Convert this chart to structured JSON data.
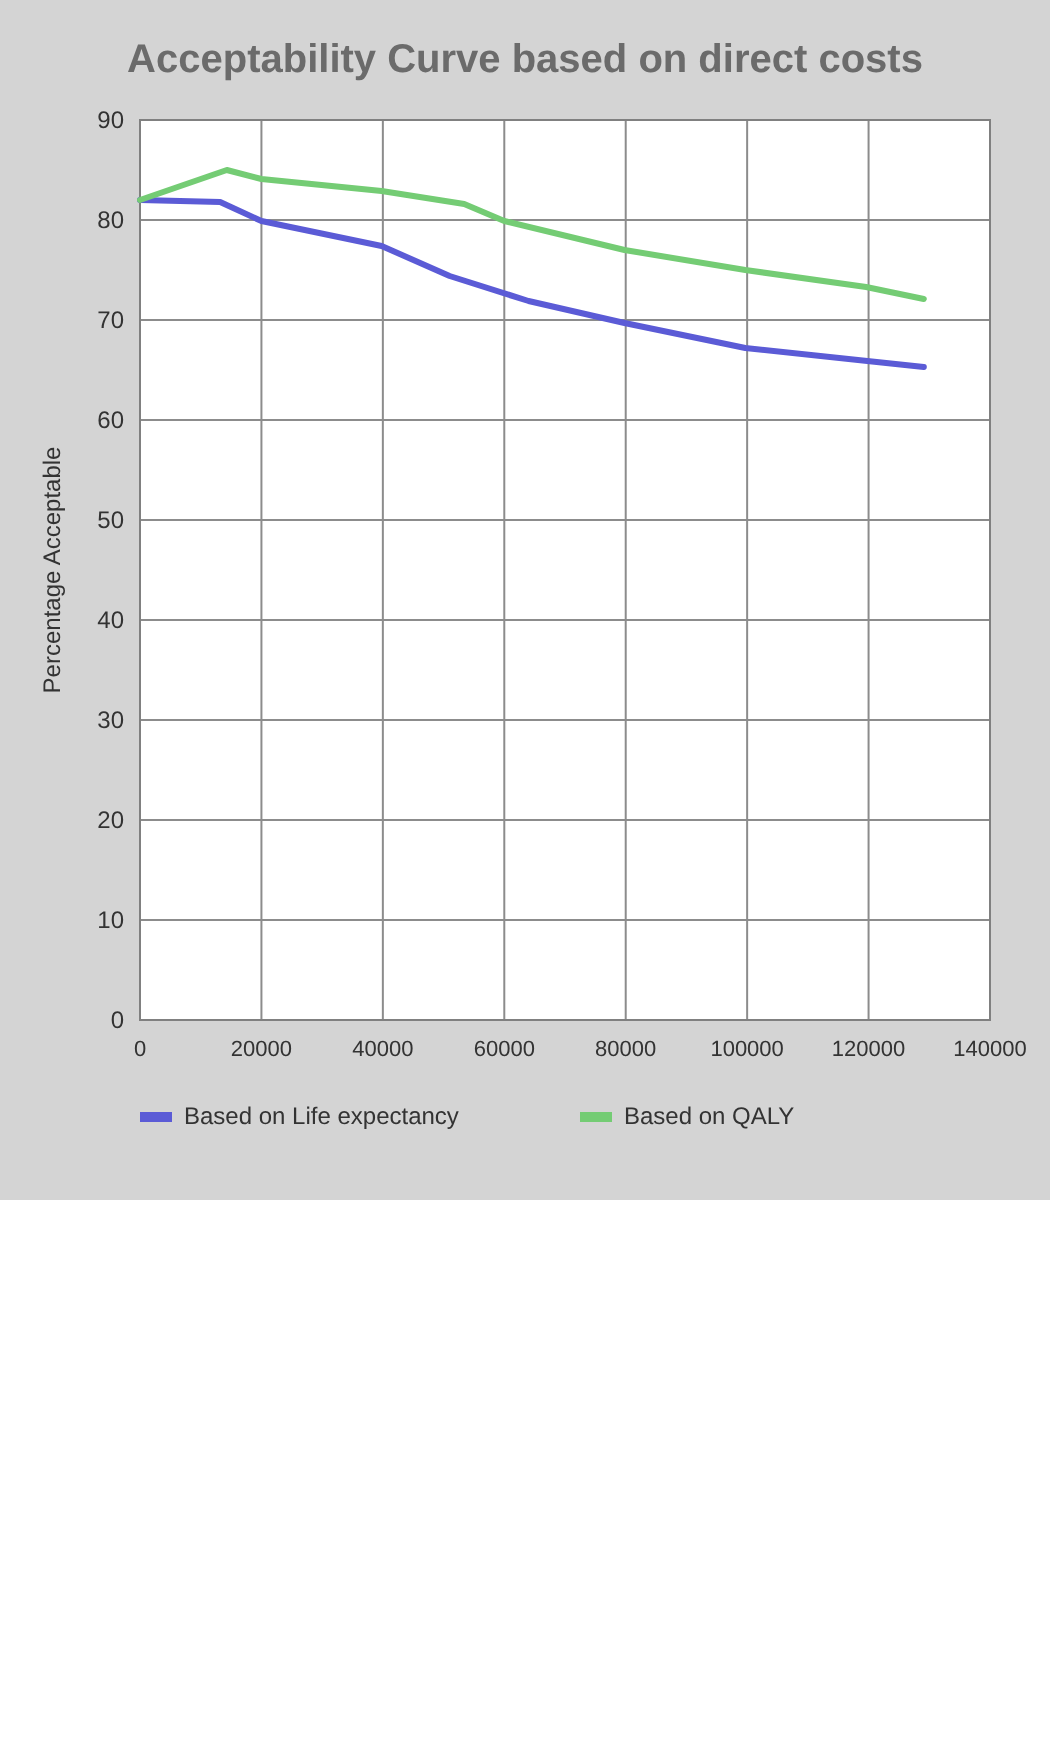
{
  "chart_data": {
    "type": "line",
    "title": "Acceptability Curve based on direct costs",
    "ylabel": "Percentage Acceptable",
    "xlim": [
      0,
      140000
    ],
    "xticks": [
      0,
      20000,
      40000,
      60000,
      80000,
      100000,
      120000,
      140000
    ],
    "ylim": [
      0,
      90
    ],
    "yticks": [
      0,
      10,
      20,
      30,
      40,
      50,
      60,
      70,
      80,
      90
    ],
    "grid": true,
    "legend": "bottom",
    "marker": "none",
    "series": [
      {
        "name": "Based on Life expectancy",
        "color": "#5b5bd6",
        "x": [
          0,
          13200,
          20000,
          39800,
          51000,
          64000,
          79800,
          99700,
          119800,
          129100
        ],
        "values": [
          82.0,
          81.8,
          79.9,
          77.4,
          74.4,
          71.9,
          69.7,
          67.2,
          65.9,
          65.3
        ]
      },
      {
        "name": "Based on QALY",
        "color": "#74cc74",
        "x": [
          0,
          14300,
          20000,
          39800,
          53400,
          60000,
          79800,
          99700,
          119600,
          129100
        ],
        "values": [
          82.0,
          85.0,
          84.1,
          82.9,
          81.6,
          79.9,
          77.0,
          75.0,
          73.3,
          72.1
        ]
      }
    ]
  }
}
